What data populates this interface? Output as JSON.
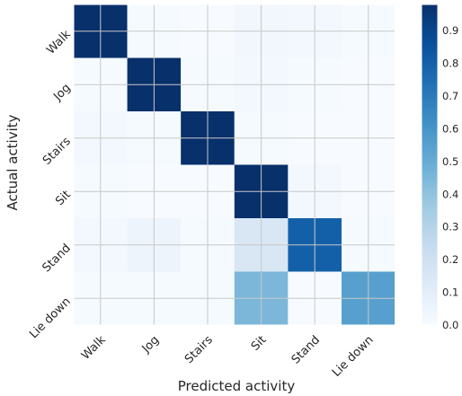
{
  "chart_data": {
    "type": "heatmap",
    "title": "",
    "xlabel": "Predicted activity",
    "ylabel": "Actual activity",
    "x_categories": [
      "Walk",
      "Jog",
      "Stairs",
      "Sit",
      "Stand",
      "Lie down"
    ],
    "y_categories": [
      "Walk",
      "Jog",
      "Stairs",
      "Sit",
      "Stand",
      "Lie down"
    ],
    "values": [
      [
        0.98,
        0.01,
        0.0,
        0.03,
        0.02,
        0.01
      ],
      [
        0.01,
        0.99,
        0.01,
        0.02,
        0.01,
        0.0
      ],
      [
        0.02,
        0.01,
        0.98,
        0.01,
        0.0,
        0.0
      ],
      [
        0.01,
        0.0,
        0.0,
        0.99,
        0.02,
        0.0
      ],
      [
        0.02,
        0.05,
        0.01,
        0.15,
        0.8,
        0.01
      ],
      [
        0.01,
        0.01,
        0.01,
        0.45,
        0.0,
        0.55
      ]
    ],
    "colorbar": {
      "colormap": "Blues",
      "range": [
        0.0,
        0.98
      ],
      "ticks": [
        "0.0",
        "0.1",
        "0.2",
        "0.3",
        "0.4",
        "0.5",
        "0.6",
        "0.7",
        "0.8",
        "0.9"
      ]
    },
    "grid": true,
    "grid_color": "#c8c8c8"
  }
}
